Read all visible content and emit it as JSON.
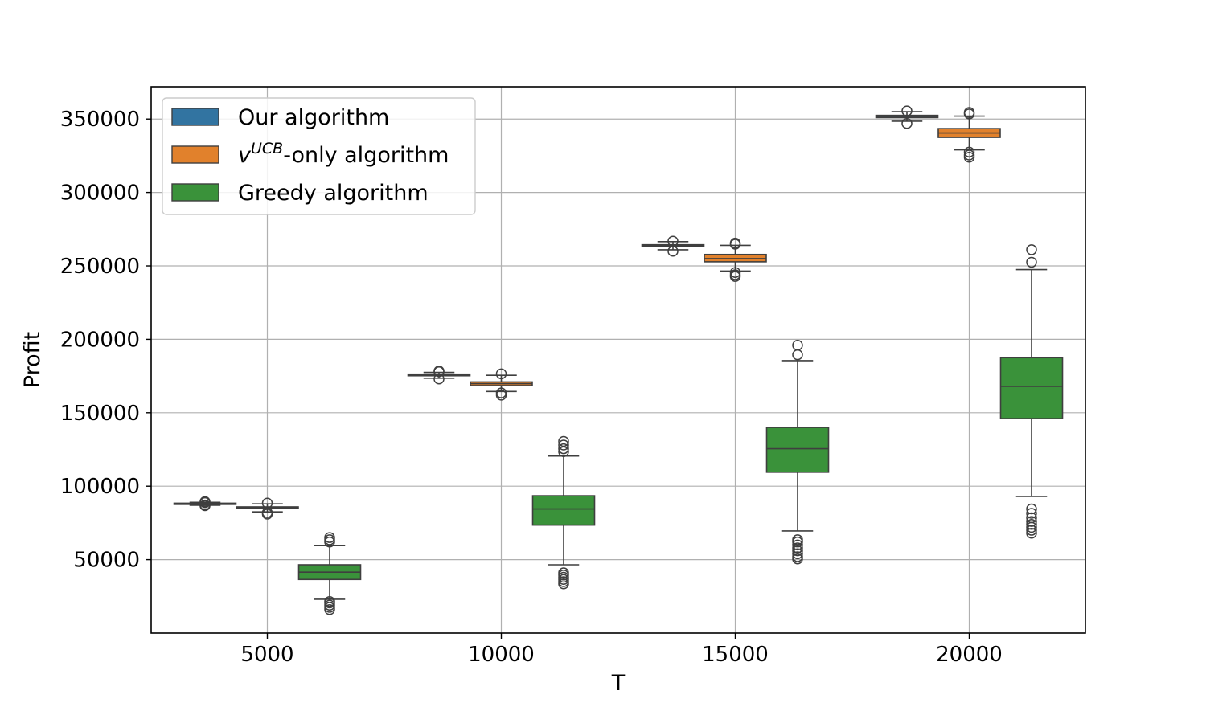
{
  "chart_data": {
    "type": "box",
    "xlabel": "T",
    "ylabel": "Profit",
    "categories": [
      "5000",
      "10000",
      "15000",
      "20000"
    ],
    "ylim": [
      0,
      372000
    ],
    "yticks": [
      50000,
      100000,
      150000,
      200000,
      250000,
      300000,
      350000
    ],
    "grid": true,
    "legend_position": "top-left",
    "series": [
      {
        "name": "Our algorithm",
        "legend_label": {
          "base": "Our algorithm",
          "sup": "",
          "rest": ""
        },
        "color": "#3274a1",
        "boxes": [
          {
            "whislo": 87000,
            "q1": 87600,
            "med": 88000,
            "q3": 88400,
            "whishi": 89000,
            "fliers": [
              86700,
              87200,
              88800,
              89500
            ]
          },
          {
            "whislo": 173500,
            "q1": 175200,
            "med": 175800,
            "q3": 176300,
            "whishi": 177500,
            "fliers": [
              173000,
              177900,
              178400
            ]
          },
          {
            "whislo": 261000,
            "q1": 263200,
            "med": 263800,
            "q3": 264400,
            "whishi": 266500,
            "fliers": [
              260000,
              266800
            ]
          },
          {
            "whislo": 348500,
            "q1": 351000,
            "med": 351800,
            "q3": 352500,
            "whishi": 355000,
            "fliers": [
              347000,
              355500
            ]
          }
        ]
      },
      {
        "name": "v^UCB-only algorithm",
        "legend_label": {
          "base": "v",
          "sup": "UCB",
          "rest": "-only algorithm"
        },
        "color": "#e1812c",
        "boxes": [
          {
            "whislo": 82500,
            "q1": 84800,
            "med": 85300,
            "q3": 85900,
            "whishi": 88000,
            "fliers": [
              81000,
              82000,
              88500
            ]
          },
          {
            "whislo": 164500,
            "q1": 168500,
            "med": 169800,
            "q3": 171000,
            "whishi": 175500,
            "fliers": [
              162000,
              163500,
              176500
            ]
          },
          {
            "whislo": 246500,
            "q1": 252800,
            "med": 255000,
            "q3": 257800,
            "whishi": 264000,
            "fliers": [
              242800,
              244000,
              245500,
              264800,
              265500
            ]
          },
          {
            "whislo": 329000,
            "q1": 337500,
            "med": 340500,
            "q3": 343500,
            "whishi": 352000,
            "fliers": [
              324000,
              325500,
              327500,
              353500,
              354500
            ]
          }
        ]
      },
      {
        "name": "Greedy algorithm",
        "legend_label": {
          "base": "Greedy algorithm",
          "sup": "",
          "rest": ""
        },
        "color": "#3a923a",
        "boxes": [
          {
            "whislo": 23000,
            "q1": 36500,
            "med": 41500,
            "q3": 46500,
            "whishi": 59500,
            "fliers": [
              16000,
              17500,
              19000,
              20500,
              21500,
              62000,
              63500,
              65000
            ]
          },
          {
            "whislo": 46500,
            "q1": 73500,
            "med": 84500,
            "q3": 93500,
            "whishi": 120500,
            "fliers": [
              33500,
              35000,
              36500,
              38000,
              39500,
              41000,
              123500,
              125500,
              128000,
              130500
            ]
          },
          {
            "whislo": 69500,
            "q1": 109500,
            "med": 125500,
            "q3": 140000,
            "whishi": 185500,
            "fliers": [
              50500,
              52000,
              54000,
              56000,
              58000,
              60000,
              62000,
              63500,
              189500,
              196000
            ]
          },
          {
            "whislo": 93000,
            "q1": 146000,
            "med": 168000,
            "q3": 187500,
            "whishi": 247500,
            "fliers": [
              68000,
              70000,
              72000,
              74000,
              76000,
              78500,
              81500,
              84500,
              252500,
              261000
            ]
          }
        ]
      }
    ]
  }
}
